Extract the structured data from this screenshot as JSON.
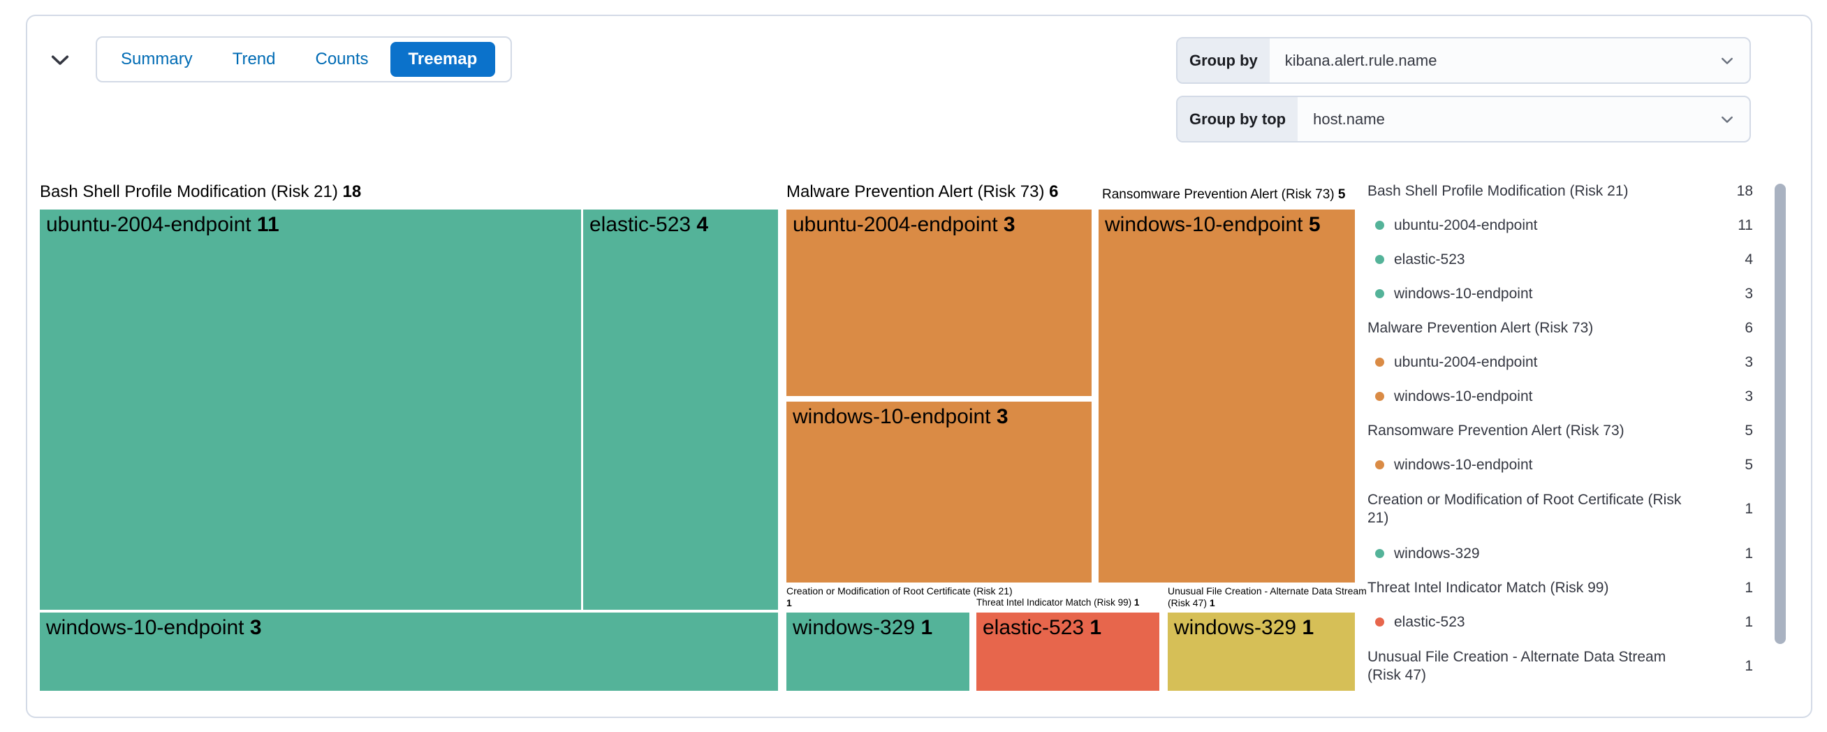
{
  "tabs": {
    "items": [
      "Summary",
      "Trend",
      "Counts",
      "Treemap"
    ],
    "selected": "Treemap"
  },
  "controls": {
    "group_by": {
      "label": "Group by",
      "value": "kibana.alert.rule.name"
    },
    "group_by_top": {
      "label": "Group by top",
      "value": "host.name"
    }
  },
  "colors": {
    "green": "#54B399",
    "orange": "#DA8B45",
    "red": "#E7664C",
    "yellow": "#D6BF57",
    "tab_selected_bg": "#0B72CB",
    "tab_text": "#006BB4",
    "panel_border": "#D3DAE6",
    "control_label_bg": "#E9EDF3",
    "legend_text": "#343741"
  },
  "chart_data": {
    "type": "treemap",
    "group_by": "kibana.alert.rule.name",
    "group_by_top": "host.name",
    "sections": [
      {
        "rule": "Bash Shell Profile Modification (Risk 21)",
        "count": 18,
        "color": "#54B399",
        "children": [
          {
            "host": "ubuntu-2004-endpoint",
            "count": 11
          },
          {
            "host": "elastic-523",
            "count": 4
          },
          {
            "host": "windows-10-endpoint",
            "count": 3
          }
        ]
      },
      {
        "rule": "Malware Prevention Alert (Risk 73)",
        "count": 6,
        "color": "#DA8B45",
        "children": [
          {
            "host": "ubuntu-2004-endpoint",
            "count": 3
          },
          {
            "host": "windows-10-endpoint",
            "count": 3
          }
        ]
      },
      {
        "rule": "Ransomware Prevention Alert (Risk 73)",
        "count": 5,
        "color": "#DA8B45",
        "children": [
          {
            "host": "windows-10-endpoint",
            "count": 5
          }
        ]
      },
      {
        "rule": "Creation or Modification of Root Certificate (Risk 21)",
        "count": 1,
        "color": "#54B399",
        "children": [
          {
            "host": "windows-329",
            "count": 1
          }
        ]
      },
      {
        "rule": "Threat Intel Indicator Match (Risk 99)",
        "count": 1,
        "color": "#E7664C",
        "children": [
          {
            "host": "elastic-523",
            "count": 1
          }
        ]
      },
      {
        "rule": "Unusual File Creation - Alternate Data Stream (Risk 47)",
        "count": 1,
        "color": "#D6BF57",
        "children": [
          {
            "host": "windows-329",
            "count": 1
          }
        ]
      }
    ]
  },
  "legend": {
    "rows": [
      {
        "label": "Bash Shell Profile Modification (Risk 21)",
        "count": "18",
        "dot": null
      },
      {
        "label": "ubuntu-2004-endpoint",
        "count": "11",
        "dot": "#54B399"
      },
      {
        "label": "elastic-523",
        "count": "4",
        "dot": "#54B399"
      },
      {
        "label": "windows-10-endpoint",
        "count": "3",
        "dot": "#54B399"
      },
      {
        "label": "Malware Prevention Alert (Risk 73)",
        "count": "6",
        "dot": null
      },
      {
        "label": "ubuntu-2004-endpoint",
        "count": "3",
        "dot": "#DA8B45"
      },
      {
        "label": "windows-10-endpoint",
        "count": "3",
        "dot": "#DA8B45"
      },
      {
        "label": "Ransomware Prevention Alert (Risk 73)",
        "count": "5",
        "dot": null
      },
      {
        "label": "windows-10-endpoint",
        "count": "5",
        "dot": "#DA8B45"
      },
      {
        "label": "Creation or Modification of Root Certificate (Risk 21)",
        "count": "1",
        "dot": null
      },
      {
        "label": "windows-329",
        "count": "1",
        "dot": "#54B399"
      },
      {
        "label": "Threat Intel Indicator Match (Risk 99)",
        "count": "1",
        "dot": null
      },
      {
        "label": "elastic-523",
        "count": "1",
        "dot": "#E7664C"
      },
      {
        "label": "Unusual File Creation - Alternate Data Stream (Risk 47)",
        "count": "1",
        "dot": null
      }
    ]
  }
}
